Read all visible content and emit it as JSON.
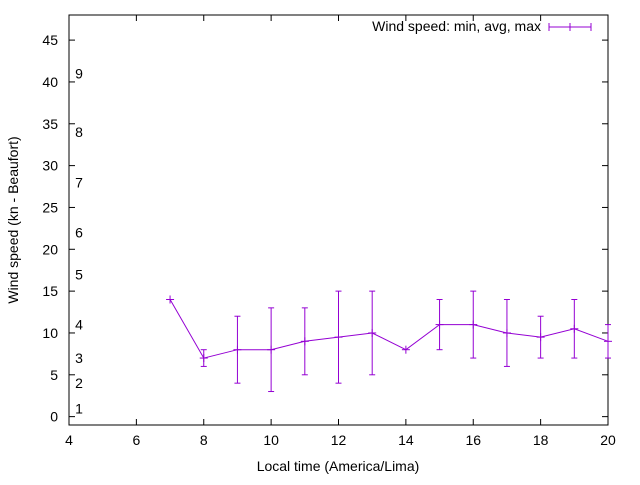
{
  "chart_data": {
    "type": "line",
    "title": "",
    "xlabel": "Local time (America/Lima)",
    "ylabel": "Wind speed (kn - Beaufort)",
    "xlim": [
      4,
      20
    ],
    "ylim": [
      -1,
      48
    ],
    "xticks": [
      4,
      6,
      8,
      10,
      12,
      14,
      16,
      18,
      20
    ],
    "yticks": [
      0,
      5,
      10,
      15,
      20,
      25,
      30,
      35,
      40,
      45
    ],
    "grid": false,
    "legend_position": "top-right",
    "beaufort_labels": [
      {
        "label": "1",
        "value": 1
      },
      {
        "label": "2",
        "value": 4
      },
      {
        "label": "3",
        "value": 7
      },
      {
        "label": "4",
        "value": 11
      },
      {
        "label": "5",
        "value": 17
      },
      {
        "label": "6",
        "value": 22
      },
      {
        "label": "7",
        "value": 28
      },
      {
        "label": "8",
        "value": 34
      },
      {
        "label": "9",
        "value": 41
      }
    ],
    "series": [
      {
        "name": "Wind speed: min, avg, max",
        "color": "#9400d3",
        "points": [
          {
            "x": 7,
            "min": 14,
            "avg": 14,
            "max": 14
          },
          {
            "x": 8,
            "min": 6,
            "avg": 7,
            "max": 8
          },
          {
            "x": 9,
            "min": 4,
            "avg": 8,
            "max": 12
          },
          {
            "x": 10,
            "min": 3,
            "avg": 8,
            "max": 13
          },
          {
            "x": 11,
            "min": 5,
            "avg": 9,
            "max": 13
          },
          {
            "x": 12,
            "min": 4,
            "avg": 9.5,
            "max": 15
          },
          {
            "x": 13,
            "min": 5,
            "avg": 10,
            "max": 15
          },
          {
            "x": 14,
            "min": 8,
            "avg": 8,
            "max": 8
          },
          {
            "x": 15,
            "min": 8,
            "avg": 11,
            "max": 14
          },
          {
            "x": 16,
            "min": 7,
            "avg": 11,
            "max": 15
          },
          {
            "x": 17,
            "min": 6,
            "avg": 10,
            "max": 14
          },
          {
            "x": 18,
            "min": 7,
            "avg": 9.5,
            "max": 12
          },
          {
            "x": 19,
            "min": 7,
            "avg": 10.5,
            "max": 14
          },
          {
            "x": 20,
            "min": 7,
            "avg": 9,
            "max": 11
          }
        ]
      }
    ]
  }
}
